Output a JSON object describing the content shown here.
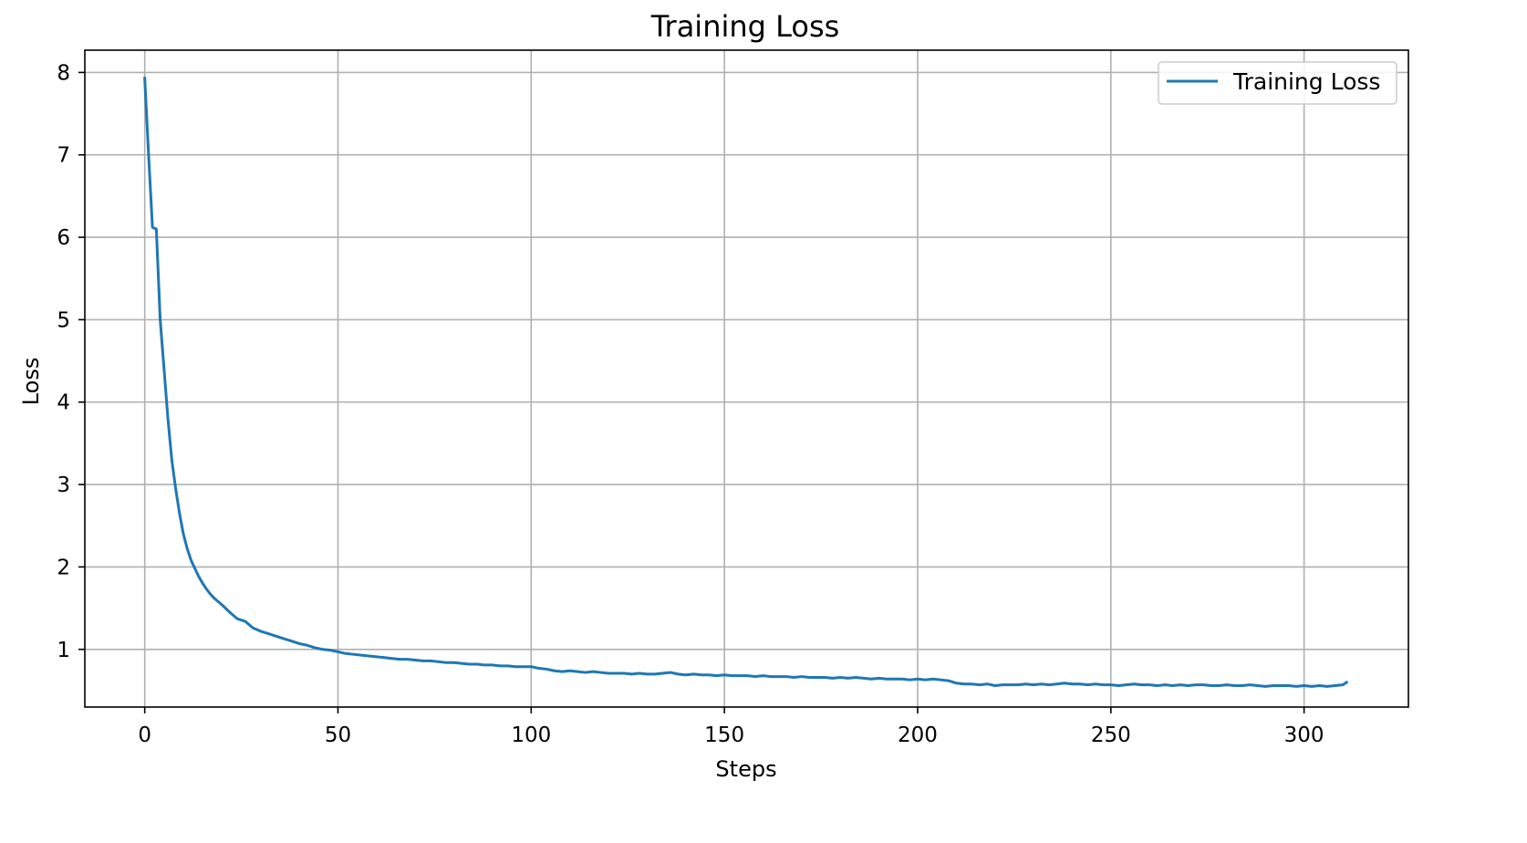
{
  "chart_data": {
    "type": "line",
    "title": "Training Loss",
    "xlabel": "Steps",
    "ylabel": "Loss",
    "xlim": [
      -15.5,
      327
    ],
    "ylim": [
      0.3,
      8.27
    ],
    "xticks": [
      0,
      50,
      100,
      150,
      200,
      250,
      300
    ],
    "yticks": [
      1,
      2,
      3,
      4,
      5,
      6,
      7,
      8
    ],
    "grid": true,
    "legend": {
      "position": "top-right"
    },
    "series": [
      {
        "name": "Training Loss",
        "color": "#1f77b4",
        "x": [
          0,
          1,
          2,
          3,
          4,
          5,
          6,
          7,
          8,
          9,
          10,
          11,
          12,
          13,
          14,
          15,
          16,
          17,
          18,
          19,
          20,
          22,
          24,
          26,
          28,
          30,
          32,
          34,
          36,
          38,
          40,
          42,
          44,
          46,
          48,
          50,
          52,
          54,
          56,
          58,
          60,
          62,
          64,
          66,
          68,
          70,
          72,
          74,
          76,
          78,
          80,
          82,
          84,
          86,
          88,
          90,
          92,
          94,
          96,
          98,
          100,
          102,
          104,
          106,
          108,
          110,
          112,
          114,
          116,
          118,
          120,
          122,
          124,
          126,
          128,
          130,
          132,
          134,
          136,
          138,
          140,
          142,
          144,
          146,
          148,
          150,
          152,
          154,
          156,
          158,
          160,
          162,
          164,
          166,
          168,
          170,
          172,
          174,
          176,
          178,
          180,
          182,
          184,
          186,
          188,
          190,
          192,
          194,
          196,
          198,
          200,
          202,
          204,
          206,
          208,
          210,
          212,
          214,
          216,
          218,
          220,
          222,
          224,
          226,
          228,
          230,
          232,
          234,
          236,
          238,
          240,
          242,
          244,
          246,
          248,
          250,
          252,
          254,
          256,
          258,
          260,
          262,
          264,
          266,
          268,
          270,
          272,
          274,
          276,
          278,
          280,
          282,
          284,
          286,
          288,
          290,
          292,
          294,
          296,
          298,
          300,
          302,
          304,
          306,
          308,
          310,
          311
        ],
        "y": [
          7.93,
          7.0,
          6.12,
          6.1,
          5.0,
          4.4,
          3.8,
          3.3,
          2.95,
          2.65,
          2.4,
          2.22,
          2.08,
          1.98,
          1.88,
          1.8,
          1.73,
          1.67,
          1.62,
          1.58,
          1.54,
          1.45,
          1.37,
          1.34,
          1.26,
          1.22,
          1.19,
          1.16,
          1.13,
          1.1,
          1.07,
          1.05,
          1.02,
          1.0,
          0.99,
          0.97,
          0.95,
          0.94,
          0.93,
          0.92,
          0.91,
          0.9,
          0.89,
          0.88,
          0.88,
          0.87,
          0.86,
          0.86,
          0.85,
          0.84,
          0.84,
          0.83,
          0.82,
          0.82,
          0.81,
          0.81,
          0.8,
          0.8,
          0.79,
          0.79,
          0.79,
          0.77,
          0.76,
          0.74,
          0.73,
          0.74,
          0.73,
          0.72,
          0.73,
          0.72,
          0.71,
          0.71,
          0.71,
          0.7,
          0.71,
          0.7,
          0.7,
          0.71,
          0.72,
          0.7,
          0.69,
          0.7,
          0.69,
          0.69,
          0.68,
          0.69,
          0.68,
          0.68,
          0.68,
          0.67,
          0.68,
          0.67,
          0.67,
          0.67,
          0.66,
          0.67,
          0.66,
          0.66,
          0.66,
          0.65,
          0.66,
          0.65,
          0.66,
          0.65,
          0.64,
          0.65,
          0.64,
          0.64,
          0.64,
          0.63,
          0.64,
          0.63,
          0.64,
          0.63,
          0.62,
          0.59,
          0.58,
          0.58,
          0.57,
          0.58,
          0.56,
          0.57,
          0.57,
          0.57,
          0.58,
          0.57,
          0.58,
          0.57,
          0.58,
          0.59,
          0.58,
          0.58,
          0.57,
          0.58,
          0.57,
          0.57,
          0.56,
          0.57,
          0.58,
          0.57,
          0.57,
          0.56,
          0.57,
          0.56,
          0.57,
          0.56,
          0.57,
          0.57,
          0.56,
          0.56,
          0.57,
          0.56,
          0.56,
          0.57,
          0.56,
          0.55,
          0.56,
          0.56,
          0.56,
          0.55,
          0.56,
          0.55,
          0.56,
          0.55,
          0.56,
          0.57,
          0.6
        ]
      }
    ]
  }
}
